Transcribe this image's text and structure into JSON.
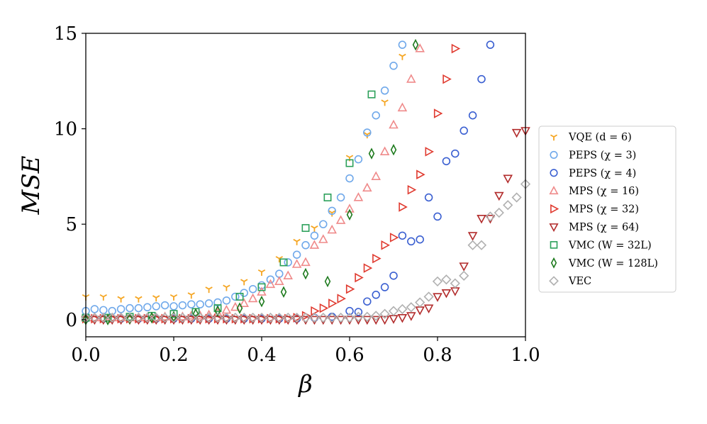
{
  "chart_data": {
    "type": "scatter",
    "xlabel": "β",
    "ylabel": "MSE",
    "xlim": [
      0.0,
      1.0
    ],
    "ylim": [
      -0.9,
      15.0
    ],
    "xticks": [
      "0.0",
      "0.2",
      "0.4",
      "0.6",
      "0.8",
      "1.0"
    ],
    "yticks": [
      "0",
      "5",
      "10",
      "15"
    ],
    "legend_position": "right, outside",
    "grid": false,
    "series": [
      {
        "name": "VQE (d = 6)",
        "marker": "tri-down",
        "color": "#f5a623",
        "x": [
          0.0,
          0.04,
          0.08,
          0.12,
          0.16,
          0.2,
          0.24,
          0.28,
          0.32,
          0.36,
          0.4,
          0.44,
          0.48,
          0.52,
          0.56,
          0.6,
          0.64,
          0.68,
          0.72
        ],
        "y": [
          1.2,
          1.2,
          1.1,
          1.1,
          1.15,
          1.2,
          1.3,
          1.6,
          1.7,
          2.0,
          2.5,
          3.2,
          4.1,
          4.8,
          5.6,
          8.5,
          9.7,
          11.4,
          13.8
        ]
      },
      {
        "name": "PEPS (χ = 3)",
        "marker": "circle",
        "color": "#6fa8ea",
        "x": [
          0.0,
          0.02,
          0.04,
          0.06,
          0.08,
          0.1,
          0.12,
          0.14,
          0.16,
          0.18,
          0.2,
          0.22,
          0.24,
          0.26,
          0.28,
          0.3,
          0.32,
          0.34,
          0.36,
          0.38,
          0.4,
          0.42,
          0.44,
          0.46,
          0.48,
          0.5,
          0.52,
          0.54,
          0.56,
          0.58,
          0.6,
          0.62,
          0.64,
          0.66,
          0.68,
          0.7,
          0.72
        ],
        "y": [
          0.45,
          0.55,
          0.5,
          0.45,
          0.55,
          0.6,
          0.6,
          0.65,
          0.7,
          0.75,
          0.7,
          0.75,
          0.8,
          0.8,
          0.85,
          0.9,
          1.0,
          1.2,
          1.4,
          1.6,
          1.8,
          2.1,
          2.4,
          3.0,
          3.4,
          3.9,
          4.4,
          5.0,
          5.7,
          6.4,
          7.4,
          8.4,
          9.8,
          10.7,
          12.0,
          13.3,
          14.4
        ]
      },
      {
        "name": "PEPS (χ = 4)",
        "marker": "circle",
        "color": "#3a5fd1",
        "x": [
          0.0,
          0.04,
          0.08,
          0.12,
          0.16,
          0.2,
          0.24,
          0.28,
          0.32,
          0.36,
          0.4,
          0.44,
          0.48,
          0.52,
          0.56,
          0.6,
          0.62,
          0.64,
          0.66,
          0.68,
          0.7,
          0.72,
          0.74,
          0.76,
          0.78,
          0.8,
          0.82,
          0.84,
          0.86,
          0.88,
          0.9,
          0.92
        ],
        "y": [
          0.05,
          0.05,
          0.05,
          0.05,
          0.05,
          0.05,
          0.05,
          0.05,
          0.05,
          0.05,
          0.05,
          0.05,
          0.05,
          0.1,
          0.15,
          0.45,
          0.4,
          0.95,
          1.3,
          1.7,
          2.3,
          4.4,
          4.1,
          4.2,
          6.4,
          5.4,
          8.3,
          8.7,
          9.9,
          10.7,
          12.6,
          14.4
        ]
      },
      {
        "name": "MPS (χ = 16)",
        "marker": "triangle-up",
        "color": "#ef8a8a",
        "x": [
          0.0,
          0.02,
          0.04,
          0.06,
          0.08,
          0.1,
          0.12,
          0.14,
          0.16,
          0.18,
          0.2,
          0.22,
          0.24,
          0.26,
          0.28,
          0.3,
          0.32,
          0.34,
          0.36,
          0.38,
          0.4,
          0.42,
          0.44,
          0.46,
          0.48,
          0.5,
          0.52,
          0.54,
          0.56,
          0.58,
          0.6,
          0.62,
          0.64,
          0.66,
          0.68,
          0.7,
          0.72,
          0.74,
          0.76
        ],
        "y": [
          0.1,
          0.1,
          0.1,
          0.1,
          0.1,
          0.1,
          0.1,
          0.1,
          0.1,
          0.15,
          0.15,
          0.15,
          0.2,
          0.2,
          0.25,
          0.35,
          0.5,
          0.65,
          0.85,
          1.1,
          1.45,
          1.85,
          2.0,
          2.3,
          2.9,
          3.0,
          3.9,
          4.2,
          4.7,
          5.2,
          5.8,
          6.4,
          6.9,
          7.5,
          8.8,
          10.2,
          11.1,
          12.6,
          14.2
        ]
      },
      {
        "name": "MPS (χ = 32)",
        "marker": "triangle-right",
        "color": "#e03a2f",
        "x": [
          0.0,
          0.02,
          0.04,
          0.06,
          0.08,
          0.1,
          0.12,
          0.14,
          0.16,
          0.18,
          0.2,
          0.22,
          0.24,
          0.26,
          0.28,
          0.3,
          0.32,
          0.34,
          0.36,
          0.38,
          0.4,
          0.42,
          0.44,
          0.46,
          0.48,
          0.5,
          0.52,
          0.54,
          0.56,
          0.58,
          0.6,
          0.62,
          0.64,
          0.66,
          0.68,
          0.7,
          0.72,
          0.74,
          0.76,
          0.78,
          0.8,
          0.82,
          0.84
        ],
        "y": [
          0.05,
          0.05,
          0.05,
          0.05,
          0.05,
          0.05,
          0.05,
          0.05,
          0.05,
          0.05,
          0.05,
          0.05,
          0.05,
          0.05,
          0.05,
          0.05,
          0.05,
          0.05,
          0.05,
          0.05,
          0.05,
          0.05,
          0.05,
          0.05,
          0.1,
          0.2,
          0.45,
          0.6,
          0.85,
          1.1,
          1.6,
          2.2,
          2.7,
          3.2,
          3.9,
          4.3,
          5.9,
          6.8,
          7.6,
          8.8,
          10.8,
          12.6,
          14.2
        ]
      },
      {
        "name": "MPS (χ = 64)",
        "marker": "triangle-down",
        "color": "#b22b2b",
        "x": [
          0.0,
          0.02,
          0.04,
          0.06,
          0.08,
          0.1,
          0.12,
          0.14,
          0.16,
          0.18,
          0.2,
          0.22,
          0.24,
          0.26,
          0.28,
          0.3,
          0.32,
          0.34,
          0.36,
          0.38,
          0.4,
          0.42,
          0.44,
          0.46,
          0.48,
          0.5,
          0.52,
          0.54,
          0.56,
          0.58,
          0.6,
          0.62,
          0.64,
          0.66,
          0.68,
          0.7,
          0.72,
          0.74,
          0.76,
          0.78,
          0.8,
          0.82,
          0.84,
          0.86,
          0.88,
          0.9,
          0.92,
          0.94,
          0.96,
          0.98,
          1.0
        ],
        "y": [
          0.0,
          0.0,
          0.0,
          0.0,
          0.0,
          0.0,
          0.0,
          0.0,
          0.0,
          0.0,
          0.0,
          0.0,
          0.0,
          0.0,
          0.0,
          0.0,
          0.0,
          0.0,
          0.0,
          0.0,
          0.0,
          0.0,
          0.0,
          0.0,
          0.0,
          0.0,
          0.0,
          0.0,
          0.0,
          0.0,
          0.0,
          0.0,
          0.0,
          0.0,
          0.0,
          0.05,
          0.1,
          0.2,
          0.5,
          0.6,
          1.2,
          1.4,
          1.5,
          2.8,
          4.4,
          5.3,
          5.3,
          6.5,
          7.4,
          9.8,
          9.9
        ]
      },
      {
        "name": "VMC (W = 32L)",
        "marker": "square",
        "color": "#2ca05a",
        "x": [
          0.0,
          0.05,
          0.1,
          0.15,
          0.2,
          0.25,
          0.3,
          0.35,
          0.4,
          0.45,
          0.5,
          0.55,
          0.6,
          0.65
        ],
        "y": [
          0.1,
          0.1,
          0.15,
          0.2,
          0.3,
          0.4,
          0.6,
          1.2,
          1.7,
          3.0,
          4.8,
          6.4,
          8.2,
          11.8
        ]
      },
      {
        "name": "VMC (W = 128L)",
        "marker": "diamond-thin",
        "color": "#1d7a1d",
        "x": [
          0.0,
          0.05,
          0.1,
          0.15,
          0.2,
          0.25,
          0.3,
          0.35,
          0.4,
          0.45,
          0.5,
          0.55,
          0.6,
          0.65,
          0.7,
          0.75
        ],
        "y": [
          0.0,
          0.0,
          0.05,
          0.1,
          0.15,
          0.3,
          0.45,
          0.6,
          0.95,
          1.45,
          2.4,
          2.0,
          5.5,
          8.7,
          8.9,
          14.4
        ]
      },
      {
        "name": "VEC",
        "marker": "diamond",
        "color": "#b0b0b0",
        "x": [
          0.0,
          0.02,
          0.04,
          0.06,
          0.08,
          0.1,
          0.12,
          0.14,
          0.16,
          0.18,
          0.2,
          0.22,
          0.24,
          0.26,
          0.28,
          0.3,
          0.32,
          0.34,
          0.36,
          0.38,
          0.4,
          0.42,
          0.44,
          0.46,
          0.48,
          0.5,
          0.52,
          0.54,
          0.56,
          0.58,
          0.6,
          0.62,
          0.64,
          0.66,
          0.68,
          0.7,
          0.72,
          0.74,
          0.76,
          0.78,
          0.8,
          0.82,
          0.84,
          0.86,
          0.88,
          0.9,
          0.92,
          0.94,
          0.96,
          0.98,
          1.0
        ],
        "y": [
          0.1,
          0.1,
          0.1,
          0.1,
          0.1,
          0.1,
          0.1,
          0.1,
          0.1,
          0.1,
          0.1,
          0.1,
          0.1,
          0.1,
          0.1,
          0.1,
          0.1,
          0.1,
          0.1,
          0.1,
          0.1,
          0.1,
          0.1,
          0.1,
          0.1,
          0.1,
          0.1,
          0.1,
          0.1,
          0.1,
          0.1,
          0.15,
          0.15,
          0.2,
          0.3,
          0.45,
          0.55,
          0.65,
          0.9,
          1.2,
          2.0,
          2.1,
          1.9,
          2.3,
          3.9,
          3.9,
          5.4,
          5.6,
          6.0,
          6.4,
          7.1
        ]
      }
    ]
  }
}
